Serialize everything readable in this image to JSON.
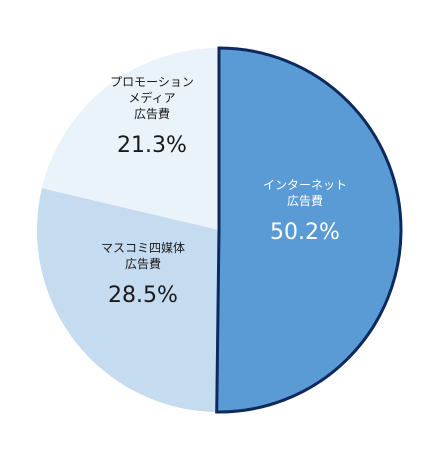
{
  "chart_data": {
    "type": "pie",
    "slices": [
      {
        "label_lines": [
          "インターネット",
          "広告費"
        ],
        "value": 50.2,
        "value_label": "50.2%",
        "color": "#5b9bd5",
        "highlight_stroke": "#0d2a5e",
        "text_color": "#ffffff"
      },
      {
        "label_lines": [
          "マスコミ四媒体",
          "広告費"
        ],
        "value": 28.5,
        "value_label": "28.5%",
        "color": "#c5dbef",
        "text_color": "#1a1a1a"
      },
      {
        "label_lines": [
          "プロモーション",
          "メディア",
          "広告費"
        ],
        "value": 21.3,
        "value_label": "21.3%",
        "color": "#eaf2fa",
        "text_color": "#1a1a1a"
      }
    ],
    "start_angle_deg": 0,
    "direction": "clockwise",
    "legend": "none"
  }
}
